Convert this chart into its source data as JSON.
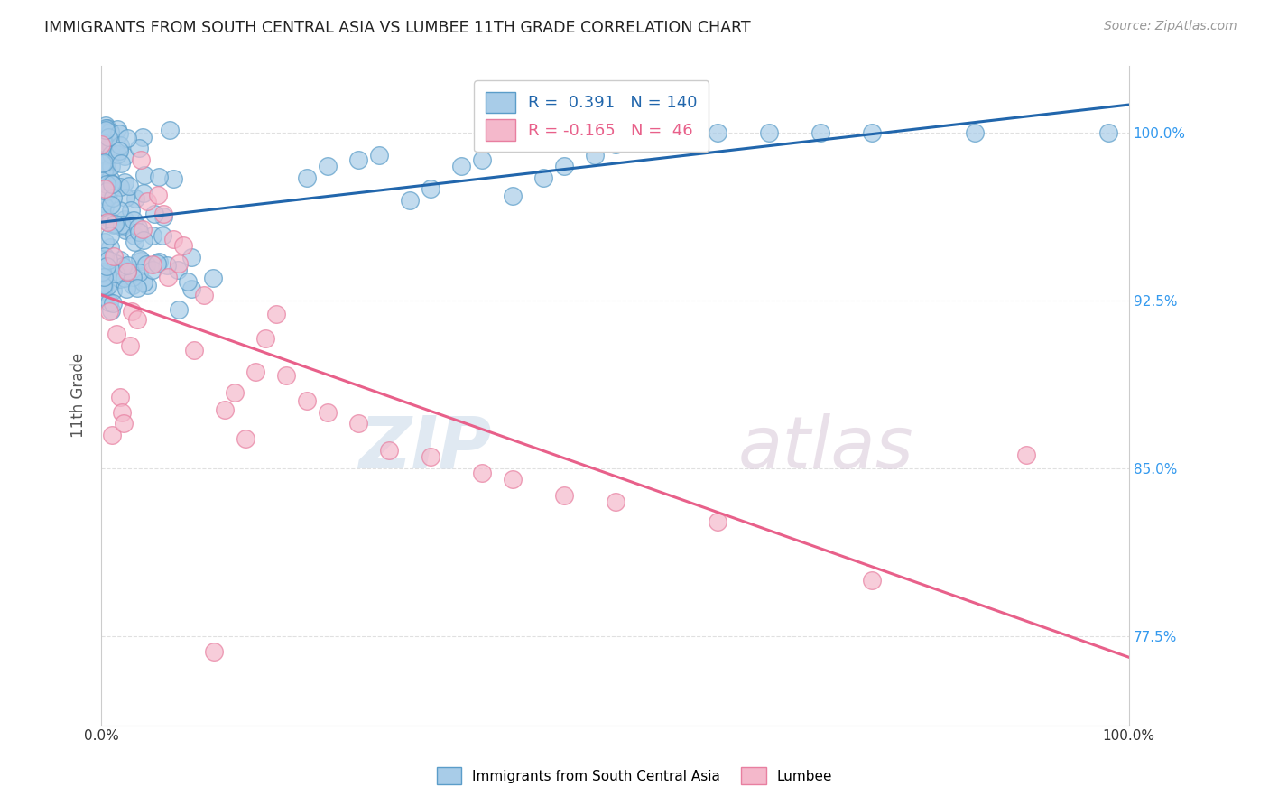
{
  "title": "IMMIGRANTS FROM SOUTH CENTRAL ASIA VS LUMBEE 11TH GRADE CORRELATION CHART",
  "source": "Source: ZipAtlas.com",
  "ylabel": "11th Grade",
  "xlim": [
    0.0,
    1.0
  ],
  "ylim": [
    0.735,
    1.03
  ],
  "yticks": [
    0.775,
    0.85,
    0.925,
    1.0
  ],
  "ytick_labels": [
    "77.5%",
    "85.0%",
    "92.5%",
    "100.0%"
  ],
  "blue_R": 0.391,
  "blue_N": 140,
  "pink_R": -0.165,
  "pink_N": 46,
  "blue_color": "#a8cce8",
  "pink_color": "#f4b8cb",
  "blue_edge_color": "#5b9dc9",
  "pink_edge_color": "#e87fa0",
  "blue_line_color": "#2166ac",
  "pink_line_color": "#e8608a",
  "watermark": "ZIPatlas",
  "legend_blue_label": "Immigrants from South Central Asia",
  "legend_pink_label": "Lumbee",
  "background_color": "#ffffff",
  "grid_color": "#e0e0e0",
  "title_color": "#222222",
  "axis_label_color": "#555555",
  "right_axis_label_color": "#3399ee",
  "figsize": [
    14.06,
    8.92
  ],
  "dpi": 100
}
